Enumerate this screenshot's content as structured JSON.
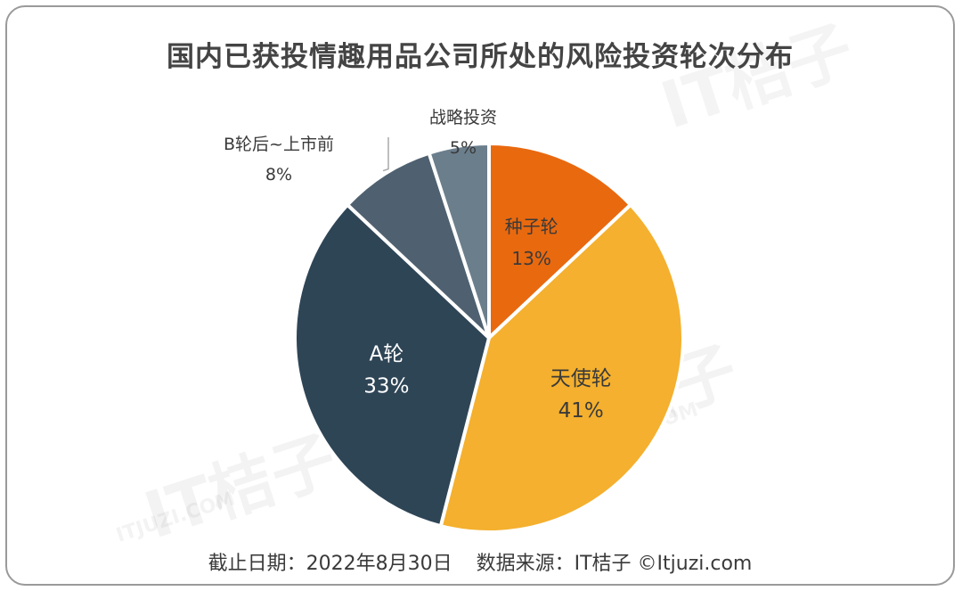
{
  "chart_data": {
    "type": "pie",
    "title": "国内已获投情趣用品公司所处的风险投资轮次分布",
    "slices": [
      {
        "label": "种子轮",
        "value": 13,
        "display": "13%",
        "color": "#E9690F"
      },
      {
        "label": "天使轮",
        "value": 41,
        "display": "41%",
        "color": "#F4B02E"
      },
      {
        "label": "A轮",
        "value": 33,
        "display": "33%",
        "color": "#2E4556"
      },
      {
        "label": "B轮后~上市前",
        "value": 8,
        "display": "8%",
        "color": "#4F6170"
      },
      {
        "label": "战略投资",
        "value": 5,
        "display": "5%",
        "color": "#6B7E8C"
      }
    ],
    "start_angle_deg": 0,
    "direction": "clockwise",
    "legend": "none"
  },
  "footer": {
    "date_text": "截止日期：2022年8月30日",
    "source_text": "数据来源：IT桔子 ©Itjuzi.com"
  },
  "watermark": {
    "brand": "IT桔子",
    "domain": "ITJUZI.COM"
  }
}
